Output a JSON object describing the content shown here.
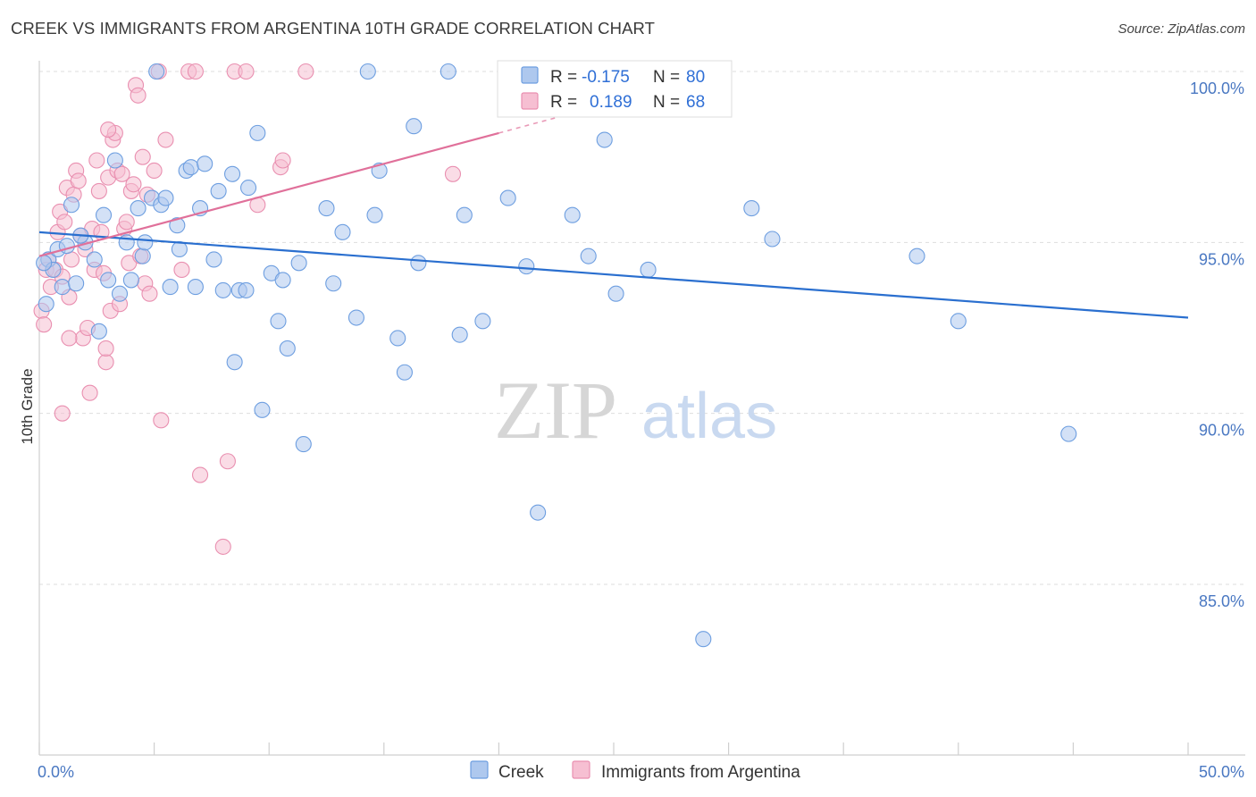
{
  "title": "CREEK VS IMMIGRANTS FROM ARGENTINA 10TH GRADE CORRELATION CHART",
  "source": "Source: ZipAtlas.com",
  "watermark": {
    "zip": "ZIP",
    "atlas": "atlas"
  },
  "colors": {
    "creek_fill": "#aec8ee",
    "creek_stroke": "#6d9ee0",
    "creek_line": "#2a6fcf",
    "arg_fill": "#f6bfd2",
    "arg_stroke": "#e98fb0",
    "arg_line": "#e0709a",
    "axis_text": "#4a78c2",
    "grid": "#dddddd"
  },
  "legend": {
    "rows": [
      {
        "r_label": "R =",
        "r_value": "-0.175",
        "n_label": "N =",
        "n_value": "80"
      },
      {
        "r_label": "R =",
        "r_value": "0.189",
        "n_label": "N =",
        "n_value": "68"
      }
    ]
  },
  "bottom_legend": [
    "Creek",
    "Immigrants from Argentina"
  ],
  "chart_data": {
    "type": "scatter",
    "title": "CREEK VS IMMIGRANTS FROM ARGENTINA 10TH GRADE CORRELATION CHART",
    "xlabel": "",
    "ylabel": "10th Grade",
    "xlim": [
      0,
      50
    ],
    "ylim": [
      80.5,
      100.8
    ],
    "x_tick_labels": [
      "0.0%",
      "50.0%"
    ],
    "y_ticks": [
      85,
      90,
      95,
      100
    ],
    "y_tick_labels": [
      "85.0%",
      "90.0%",
      "95.0%",
      "100.0%"
    ],
    "grid": true,
    "legend_position": "top-center",
    "series": [
      {
        "name": "Creek",
        "r": -0.175,
        "n": 80,
        "trend": {
          "x": [
            0,
            50
          ],
          "y": [
            95.3,
            92.8
          ]
        },
        "points": [
          [
            0.3,
            93.2
          ],
          [
            0.4,
            94.5
          ],
          [
            0.6,
            94.2
          ],
          [
            0.8,
            94.8
          ],
          [
            1.0,
            93.7
          ],
          [
            1.2,
            94.9
          ],
          [
            1.4,
            96.1
          ],
          [
            1.6,
            93.8
          ],
          [
            2.0,
            95.0
          ],
          [
            2.4,
            94.5
          ],
          [
            2.6,
            92.4
          ],
          [
            2.8,
            95.8
          ],
          [
            3.0,
            93.9
          ],
          [
            3.3,
            97.4
          ],
          [
            3.5,
            93.5
          ],
          [
            3.8,
            95.0
          ],
          [
            4.0,
            93.9
          ],
          [
            4.3,
            96.0
          ],
          [
            4.5,
            94.6
          ],
          [
            4.6,
            95.0
          ],
          [
            4.9,
            96.3
          ],
          [
            5.1,
            100.0
          ],
          [
            5.3,
            96.1
          ],
          [
            5.5,
            96.3
          ],
          [
            5.7,
            93.7
          ],
          [
            6.0,
            95.5
          ],
          [
            6.1,
            94.8
          ],
          [
            6.4,
            97.1
          ],
          [
            6.6,
            97.2
          ],
          [
            6.8,
            93.7
          ],
          [
            7.0,
            96.0
          ],
          [
            7.2,
            97.3
          ],
          [
            7.6,
            94.5
          ],
          [
            7.8,
            96.5
          ],
          [
            8.0,
            93.6
          ],
          [
            8.4,
            97.0
          ],
          [
            8.5,
            91.5
          ],
          [
            8.7,
            93.6
          ],
          [
            9.0,
            93.6
          ],
          [
            9.1,
            96.6
          ],
          [
            9.5,
            98.2
          ],
          [
            9.7,
            90.1
          ],
          [
            10.1,
            94.1
          ],
          [
            10.4,
            92.7
          ],
          [
            10.6,
            93.9
          ],
          [
            10.8,
            91.9
          ],
          [
            11.3,
            94.4
          ],
          [
            11.5,
            89.1
          ],
          [
            12.5,
            96.0
          ],
          [
            12.8,
            93.8
          ],
          [
            13.2,
            95.3
          ],
          [
            13.8,
            92.8
          ],
          [
            14.3,
            100.0
          ],
          [
            14.6,
            95.8
          ],
          [
            14.8,
            97.1
          ],
          [
            15.6,
            92.2
          ],
          [
            15.9,
            91.2
          ],
          [
            16.3,
            98.4
          ],
          [
            16.5,
            94.4
          ],
          [
            17.8,
            100.0
          ],
          [
            18.3,
            92.3
          ],
          [
            18.5,
            95.8
          ],
          [
            19.3,
            92.7
          ],
          [
            20.4,
            96.3
          ],
          [
            21.2,
            94.3
          ],
          [
            21.7,
            87.1
          ],
          [
            23.2,
            95.8
          ],
          [
            23.6,
            100.0
          ],
          [
            23.9,
            94.6
          ],
          [
            24.6,
            98.0
          ],
          [
            25.1,
            93.5
          ],
          [
            26.5,
            94.2
          ],
          [
            28.9,
            83.4
          ],
          [
            31.0,
            96.0
          ],
          [
            31.9,
            95.1
          ],
          [
            38.2,
            94.6
          ],
          [
            40.0,
            92.7
          ],
          [
            44.8,
            89.4
          ],
          [
            0.2,
            94.4
          ],
          [
            1.8,
            95.2
          ]
        ]
      },
      {
        "name": "Immigrants from Argentina",
        "r": 0.189,
        "n": 68,
        "trend": {
          "x": [
            0,
            20.0
          ],
          "y": [
            94.6,
            98.2
          ]
        },
        "points": [
          [
            0.1,
            93.0
          ],
          [
            0.2,
            92.6
          ],
          [
            0.3,
            94.2
          ],
          [
            0.4,
            94.5
          ],
          [
            0.5,
            93.7
          ],
          [
            0.7,
            94.2
          ],
          [
            0.8,
            95.3
          ],
          [
            0.9,
            95.9
          ],
          [
            1.0,
            94.0
          ],
          [
            1.1,
            95.6
          ],
          [
            1.2,
            96.6
          ],
          [
            1.3,
            93.4
          ],
          [
            1.4,
            94.5
          ],
          [
            1.5,
            96.4
          ],
          [
            1.6,
            97.1
          ],
          [
            1.7,
            96.8
          ],
          [
            1.8,
            95.2
          ],
          [
            1.9,
            92.2
          ],
          [
            2.0,
            94.8
          ],
          [
            2.1,
            92.5
          ],
          [
            2.2,
            90.6
          ],
          [
            2.3,
            95.4
          ],
          [
            2.4,
            94.2
          ],
          [
            2.5,
            97.4
          ],
          [
            2.6,
            96.5
          ],
          [
            2.7,
            95.3
          ],
          [
            2.8,
            94.1
          ],
          [
            2.9,
            91.5
          ],
          [
            3.0,
            96.9
          ],
          [
            3.1,
            93.0
          ],
          [
            3.2,
            98.0
          ],
          [
            3.3,
            98.2
          ],
          [
            3.4,
            97.1
          ],
          [
            3.5,
            93.2
          ],
          [
            3.6,
            97.0
          ],
          [
            3.7,
            95.4
          ],
          [
            3.8,
            95.6
          ],
          [
            3.9,
            94.4
          ],
          [
            4.0,
            96.5
          ],
          [
            4.1,
            96.7
          ],
          [
            4.2,
            99.6
          ],
          [
            4.3,
            99.3
          ],
          [
            4.4,
            94.6
          ],
          [
            4.5,
            97.5
          ],
          [
            4.6,
            93.8
          ],
          [
            4.7,
            96.4
          ],
          [
            4.8,
            93.5
          ],
          [
            5.0,
            97.1
          ],
          [
            5.2,
            100.0
          ],
          [
            5.3,
            89.8
          ],
          [
            5.5,
            98.0
          ],
          [
            6.2,
            94.2
          ],
          [
            6.5,
            100.0
          ],
          [
            6.8,
            100.0
          ],
          [
            7.0,
            88.2
          ],
          [
            8.0,
            86.1
          ],
          [
            8.2,
            88.6
          ],
          [
            8.5,
            100.0
          ],
          [
            9.0,
            100.0
          ],
          [
            9.5,
            96.1
          ],
          [
            10.5,
            97.2
          ],
          [
            10.6,
            97.4
          ],
          [
            11.6,
            100.0
          ],
          [
            18.0,
            97.0
          ],
          [
            1.0,
            90.0
          ],
          [
            1.3,
            92.2
          ],
          [
            2.9,
            91.9
          ],
          [
            3.0,
            98.3
          ]
        ]
      }
    ]
  }
}
